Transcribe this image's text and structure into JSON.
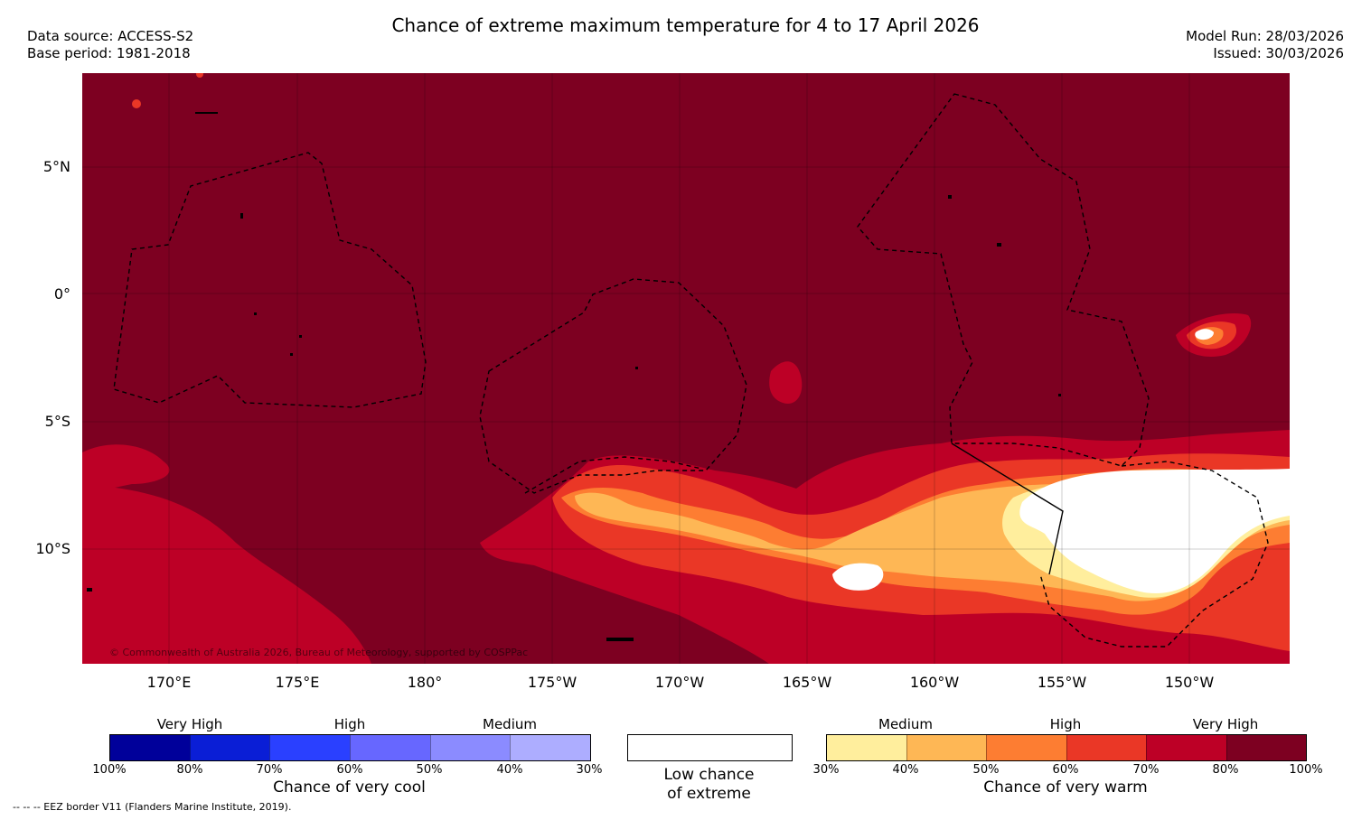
{
  "header": {
    "title": "Chance of extreme maximum temperature for 4 to 17 April 2026",
    "data_source": "Data source: ACCESS-S2",
    "base_period": "Base period: 1981-2018",
    "model_run": "Model Run: 28/03/2026",
    "issued": "Issued: 30/03/2026"
  },
  "map": {
    "lat_labels": [
      "5°N",
      "0°",
      "5°S",
      "10°S"
    ],
    "lon_labels": [
      "170°E",
      "175°E",
      "180°",
      "175°W",
      "170°W",
      "165°W",
      "160°W",
      "155°W",
      "150°W"
    ],
    "copyright": "© Commonwealth of Australia 2026, Bureau of Meteorology, supported by COSPPac",
    "background_color": "#7d0021"
  },
  "legend_cool": {
    "categories": [
      "Very High",
      "High",
      "Medium"
    ],
    "ticks": [
      "100%",
      "80%",
      "70%",
      "60%",
      "50%",
      "40%",
      "30%"
    ],
    "title": "Chance of very cool",
    "colors": [
      "#00009a",
      "#0a1ed6",
      "#2a40ff",
      "#6767ff",
      "#8b8bff",
      "#adadff"
    ]
  },
  "legend_low": {
    "line1": "Low chance",
    "line2": "of extreme"
  },
  "legend_warm": {
    "categories": [
      "Medium",
      "High",
      "Very High"
    ],
    "ticks": [
      "30%",
      "40%",
      "50%",
      "60%",
      "70%",
      "80%",
      "100%"
    ],
    "title": "Chance of very warm",
    "colors": [
      "#ffee9d",
      "#feb755",
      "#fd7d32",
      "#ea3726",
      "#bd0026",
      "#7d0021"
    ]
  },
  "footer": {
    "note": "--  --  -- EEZ border V11 (Flanders Marine Institute, 2019)."
  }
}
